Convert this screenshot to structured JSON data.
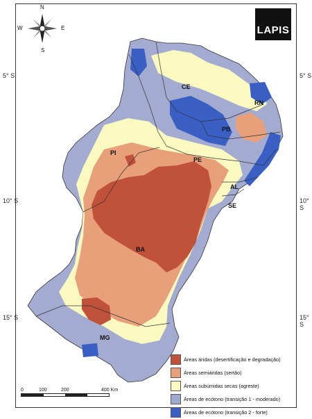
{
  "latitude_labels": [
    "5° S",
    "10° S",
    "15° S"
  ],
  "logo": {
    "text": "LAPIS"
  },
  "compass": {
    "n": "N",
    "s": "S",
    "e": "E",
    "w": "W"
  },
  "state_labels": [
    "CE",
    "RN",
    "PB",
    "PI",
    "PE",
    "AL",
    "SE",
    "BA",
    "MG"
  ],
  "legend": [
    {
      "label": "Áreas áridas (desertificação e degradação)",
      "color": "#c0513a"
    },
    {
      "label": "Áreas semiáridas (sertão)",
      "color": "#e8a07a"
    },
    {
      "label": "Áreas subúmidas secas (agreste)",
      "color": "#fafac0"
    },
    {
      "label": "Áreas de ecótono (transição 1 - moderado)",
      "color": "#9fa9cf"
    },
    {
      "label": "Áreas de ecótono (transição 2 - forte)",
      "color": "#3a5fc4"
    }
  ],
  "scale": {
    "ticks": [
      "0",
      "100",
      "200",
      "400 Km"
    ]
  }
}
